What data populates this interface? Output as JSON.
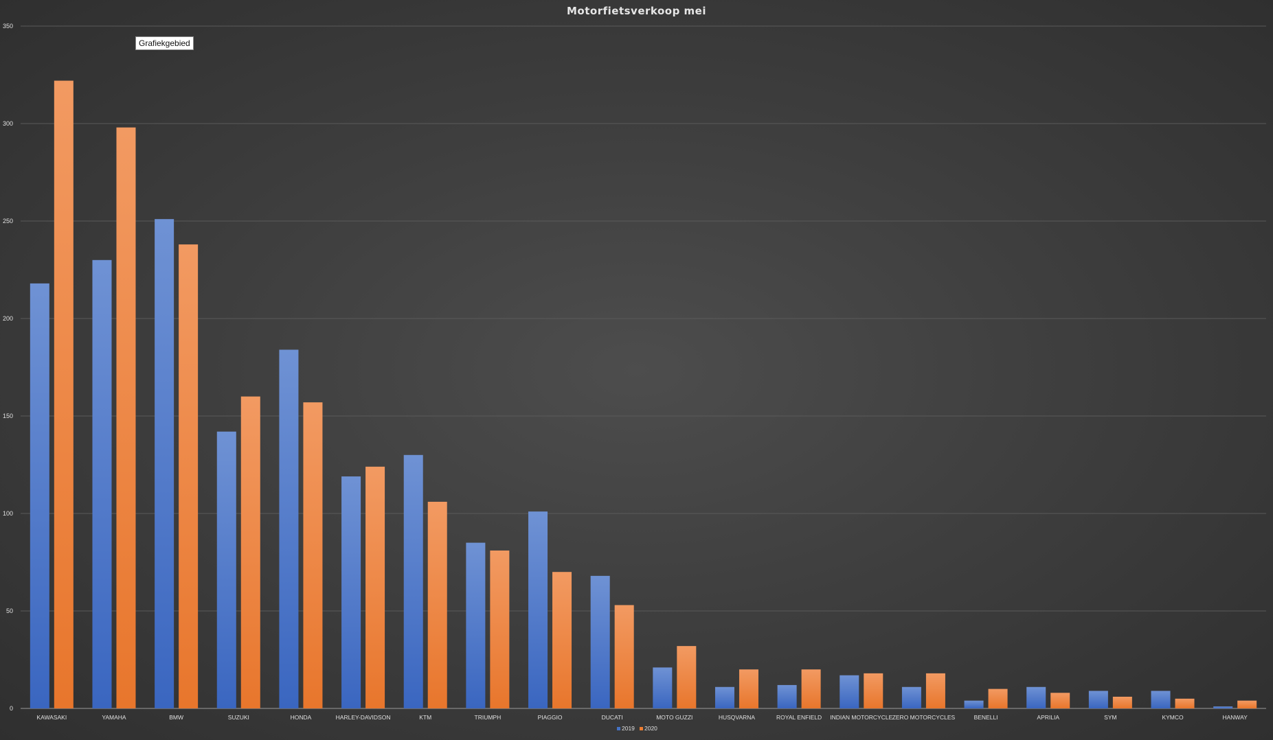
{
  "chart_data": {
    "type": "bar",
    "title": "Motorfietsverkoop mei",
    "tooltip": "Grafiekgebied",
    "categories": [
      "KAWASAKI",
      "YAMAHA",
      "BMW",
      "SUZUKI",
      "HONDA",
      "HARLEY-DAVIDSON",
      "KTM",
      "TRIUMPH",
      "PIAGGIO",
      "DUCATI",
      "MOTO GUZZI",
      "HUSQVARNA",
      "ROYAL ENFIELD",
      "INDIAN MOTORCYCLE",
      "ZERO MOTORCYCLES",
      "BENELLI",
      "APRILIA",
      "SYM",
      "KYMCO",
      "HANWAY"
    ],
    "series": [
      {
        "name": "2019",
        "color": "#4472c4",
        "values": [
          218,
          230,
          251,
          142,
          184,
          119,
          130,
          85,
          101,
          68,
          21,
          11,
          12,
          17,
          11,
          4,
          11,
          9,
          9,
          1
        ]
      },
      {
        "name": "2020",
        "color": "#ed7d31",
        "values": [
          322,
          298,
          238,
          160,
          157,
          124,
          106,
          81,
          70,
          53,
          32,
          20,
          20,
          18,
          18,
          10,
          8,
          6,
          5,
          4
        ]
      }
    ],
    "xlabel": "",
    "ylabel": "",
    "ylim": [
      0,
      350
    ],
    "yticks": [
      0,
      50,
      100,
      150,
      200,
      250,
      300,
      350
    ],
    "grid": true,
    "legend_position": "bottom"
  }
}
